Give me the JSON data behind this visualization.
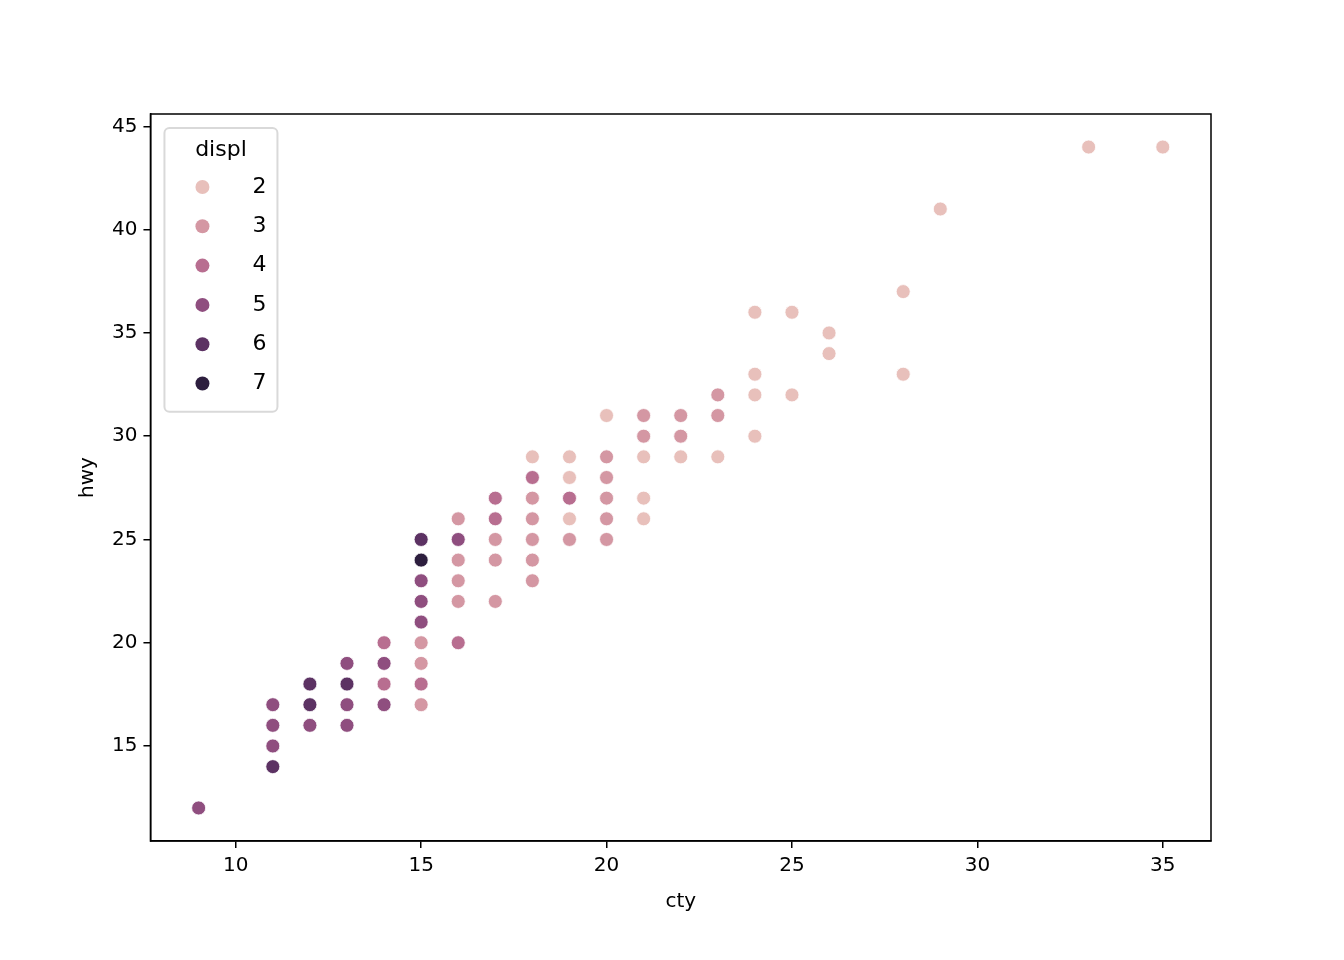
{
  "chart_data": {
    "type": "scatter",
    "xlabel": "cty",
    "ylabel": "hwy",
    "legend_title": "displ",
    "legend": "top left",
    "marker": "circle",
    "grid": false,
    "xlim": [
      7.7,
      36.3
    ],
    "ylim": [
      10.4,
      45.6
    ],
    "xticks": [
      10,
      15,
      20,
      25,
      30,
      35
    ],
    "yticks": [
      15,
      20,
      25,
      30,
      35,
      40,
      45
    ],
    "series": [
      {
        "name": "2",
        "color": "#e8c0bb",
        "x": [
          18,
          19,
          19,
          19,
          20,
          21,
          21,
          21,
          22,
          23,
          24,
          24,
          24,
          24,
          25,
          25,
          26,
          26,
          28,
          28,
          29,
          33,
          35
        ],
        "values": [
          29,
          29,
          28,
          26,
          31,
          29,
          27,
          26,
          29,
          29,
          36,
          33,
          32,
          30,
          36,
          32,
          35,
          34,
          37,
          33,
          41,
          44,
          44
        ]
      },
      {
        "name": "3",
        "color": "#d497a3",
        "x": [
          15,
          15,
          15,
          16,
          16,
          16,
          16,
          17,
          17,
          17,
          18,
          18,
          18,
          18,
          18,
          19,
          20,
          20,
          20,
          20,
          20,
          21,
          21,
          22,
          22,
          23,
          23
        ],
        "values": [
          20,
          19,
          17,
          26,
          24,
          23,
          22,
          25,
          24,
          22,
          27,
          26,
          25,
          24,
          23,
          25,
          29,
          28,
          27,
          26,
          25,
          31,
          30,
          31,
          30,
          32,
          31
        ]
      },
      {
        "name": "4",
        "color": "#b86e90",
        "x": [
          14,
          14,
          15,
          16,
          17,
          17,
          18,
          19
        ],
        "values": [
          20,
          18,
          18,
          20,
          27,
          26,
          28,
          27
        ]
      },
      {
        "name": "5",
        "color": "#8f4e7f",
        "x": [
          9,
          11,
          11,
          11,
          12,
          13,
          13,
          13,
          14,
          14,
          15,
          15,
          15,
          16
        ],
        "values": [
          12,
          17,
          16,
          15,
          16,
          19,
          17,
          16,
          19,
          17,
          23,
          22,
          21,
          25
        ]
      },
      {
        "name": "6",
        "color": "#5c3263",
        "x": [
          11,
          12,
          12,
          13,
          15
        ],
        "values": [
          14,
          18,
          17,
          18,
          25
        ]
      },
      {
        "name": "7",
        "color": "#2d1e3e",
        "x": [
          15
        ],
        "values": [
          24
        ]
      }
    ]
  }
}
